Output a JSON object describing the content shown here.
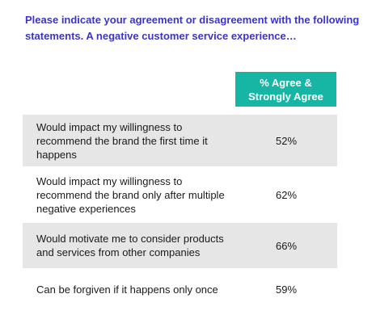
{
  "title": "Please indicate your agreement or disagreement with the following statements. A negative customer service experience…",
  "column_header": "% Agree &\nStrongly Agree",
  "colors": {
    "title": "#3b34c9",
    "header_bg": "#17b6a4",
    "row_shade": "#e6e6e6"
  },
  "rows": [
    {
      "statement": "Would impact my willingness to recommend the brand the first time it happens",
      "value": "52%"
    },
    {
      "statement": "Would impact my willingness to recommend the brand only after multiple negative experiences",
      "value": "62%"
    },
    {
      "statement": "Would motivate me to consider products and services from other companies",
      "value": "66%"
    },
    {
      "statement": "Can be forgiven if it happens only once",
      "value": "59%"
    }
  ],
  "chart_data": {
    "type": "table",
    "title": "Please indicate your agreement or disagreement with the following statements. A negative customer service experience…",
    "columns": [
      "",
      "% Agree & Strongly Agree"
    ],
    "categories": [
      "Would impact my willingness to recommend the brand the first time it happens",
      "Would impact my willingness to recommend the brand only after multiple negative experiences",
      "Would motivate me to consider products and services from other companies",
      "Can be forgiven if it happens only once"
    ],
    "values": [
      52,
      62,
      66,
      59
    ],
    "unit": "%"
  }
}
